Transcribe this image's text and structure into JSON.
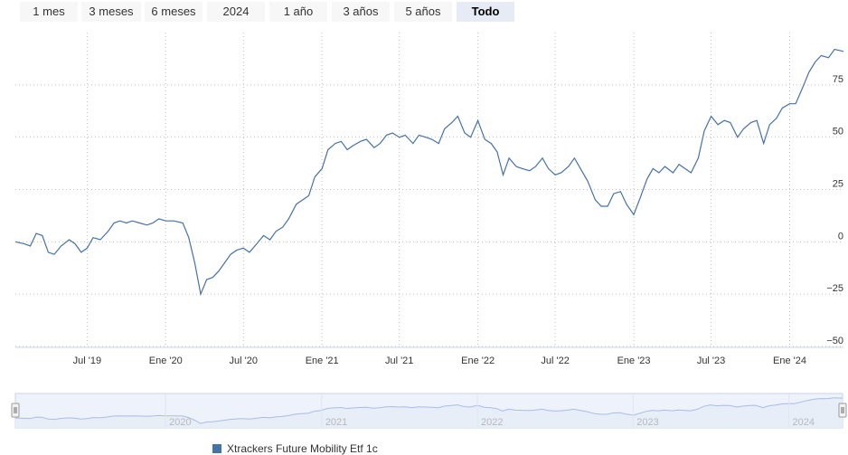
{
  "range_selector": {
    "buttons": [
      {
        "label": "1 mes",
        "active": false
      },
      {
        "label": "3 meses",
        "active": false
      },
      {
        "label": "6 meses",
        "active": false
      },
      {
        "label": "2024",
        "active": false
      },
      {
        "label": "1 año",
        "active": false
      },
      {
        "label": "3 años",
        "active": false
      },
      {
        "label": "5 años",
        "active": false
      },
      {
        "label": "Todo",
        "active": true
      }
    ]
  },
  "colors": {
    "line": "#4572a7",
    "grid": "#c0c0c0",
    "navigator_line": "#a8bee6",
    "navigator_fill": "#e8eef8"
  },
  "chart_data": {
    "type": "line",
    "x_start": "2019-01-14",
    "x_end": "2024-05-06",
    "ylim": [
      -50,
      100
    ],
    "y_ticks": [
      -50,
      -25,
      0,
      25,
      50,
      75
    ],
    "y_tick_labels": [
      "−50",
      "−25",
      "0",
      "25",
      "50",
      "75"
    ],
    "x_ticks": [
      {
        "date": "2019-07-01",
        "label": "Jul '19"
      },
      {
        "date": "2020-01-01",
        "label": "Ene '20"
      },
      {
        "date": "2020-07-01",
        "label": "Jul '20"
      },
      {
        "date": "2021-01-01",
        "label": "Ene '21"
      },
      {
        "date": "2021-07-01",
        "label": "Jul '21"
      },
      {
        "date": "2022-01-01",
        "label": "Ene '22"
      },
      {
        "date": "2022-07-01",
        "label": "Jul '22"
      },
      {
        "date": "2023-01-01",
        "label": "Ene '23"
      },
      {
        "date": "2023-07-01",
        "label": "Jul '23"
      },
      {
        "date": "2024-01-01",
        "label": "Ene '24"
      }
    ],
    "navigator_labels": [
      {
        "date": "2020-01-01",
        "label": "2020"
      },
      {
        "date": "2021-01-01",
        "label": "2021"
      },
      {
        "date": "2022-01-01",
        "label": "2022"
      },
      {
        "date": "2023-01-01",
        "label": "2023"
      },
      {
        "date": "2024-01-01",
        "label": "2024"
      }
    ],
    "series": [
      {
        "name": "Xtrackers Future Mobility Etf 1c",
        "points": [
          [
            "2019-01-14",
            0
          ],
          [
            "2019-02-04",
            -1
          ],
          [
            "2019-02-18",
            -2
          ],
          [
            "2019-03-04",
            4
          ],
          [
            "2019-03-18",
            3
          ],
          [
            "2019-04-01",
            -5
          ],
          [
            "2019-04-15",
            -6
          ],
          [
            "2019-05-01",
            -2
          ],
          [
            "2019-05-20",
            1
          ],
          [
            "2019-06-03",
            -1
          ],
          [
            "2019-06-17",
            -5
          ],
          [
            "2019-07-01",
            -3
          ],
          [
            "2019-07-15",
            2
          ],
          [
            "2019-08-01",
            1
          ],
          [
            "2019-08-19",
            5
          ],
          [
            "2019-09-02",
            9
          ],
          [
            "2019-09-16",
            10
          ],
          [
            "2019-10-01",
            9
          ],
          [
            "2019-10-15",
            10
          ],
          [
            "2019-11-01",
            9
          ],
          [
            "2019-11-18",
            8
          ],
          [
            "2019-12-02",
            9
          ],
          [
            "2019-12-16",
            11
          ],
          [
            "2020-01-01",
            10
          ],
          [
            "2020-01-20",
            10
          ],
          [
            "2020-02-10",
            9
          ],
          [
            "2020-02-24",
            2
          ],
          [
            "2020-03-09",
            -10
          ],
          [
            "2020-03-23",
            -25
          ],
          [
            "2020-04-06",
            -18
          ],
          [
            "2020-04-20",
            -17
          ],
          [
            "2020-05-04",
            -14
          ],
          [
            "2020-05-18",
            -10
          ],
          [
            "2020-06-01",
            -6
          ],
          [
            "2020-06-15",
            -4
          ],
          [
            "2020-07-01",
            -3
          ],
          [
            "2020-07-15",
            -5
          ],
          [
            "2020-08-01",
            -1
          ],
          [
            "2020-08-17",
            3
          ],
          [
            "2020-09-01",
            1
          ],
          [
            "2020-09-15",
            5
          ],
          [
            "2020-10-01",
            7
          ],
          [
            "2020-10-15",
            11
          ],
          [
            "2020-11-02",
            18
          ],
          [
            "2020-11-16",
            20
          ],
          [
            "2020-12-01",
            22
          ],
          [
            "2020-12-15",
            31
          ],
          [
            "2021-01-01",
            35
          ],
          [
            "2021-01-15",
            44
          ],
          [
            "2021-02-01",
            47
          ],
          [
            "2021-02-15",
            48
          ],
          [
            "2021-03-01",
            44
          ],
          [
            "2021-03-15",
            46
          ],
          [
            "2021-04-01",
            48
          ],
          [
            "2021-04-15",
            49
          ],
          [
            "2021-05-03",
            45
          ],
          [
            "2021-05-17",
            47
          ],
          [
            "2021-06-01",
            51
          ],
          [
            "2021-06-15",
            52
          ],
          [
            "2021-07-01",
            50
          ],
          [
            "2021-07-15",
            51
          ],
          [
            "2021-08-02",
            47
          ],
          [
            "2021-08-16",
            51
          ],
          [
            "2021-09-01",
            50
          ],
          [
            "2021-09-15",
            49
          ],
          [
            "2021-10-01",
            47
          ],
          [
            "2021-10-15",
            54
          ],
          [
            "2021-11-01",
            57
          ],
          [
            "2021-11-15",
            60
          ],
          [
            "2021-12-01",
            52
          ],
          [
            "2021-12-15",
            50
          ],
          [
            "2022-01-01",
            58
          ],
          [
            "2022-01-17",
            49
          ],
          [
            "2022-02-01",
            47
          ],
          [
            "2022-02-15",
            43
          ],
          [
            "2022-03-01",
            32
          ],
          [
            "2022-03-15",
            40
          ],
          [
            "2022-04-01",
            36
          ],
          [
            "2022-04-15",
            35
          ],
          [
            "2022-05-02",
            34
          ],
          [
            "2022-05-16",
            36
          ],
          [
            "2022-06-01",
            40
          ],
          [
            "2022-06-15",
            35
          ],
          [
            "2022-07-01",
            32
          ],
          [
            "2022-07-15",
            33
          ],
          [
            "2022-08-01",
            36
          ],
          [
            "2022-08-15",
            40
          ],
          [
            "2022-09-01",
            34
          ],
          [
            "2022-09-15",
            29
          ],
          [
            "2022-10-03",
            20
          ],
          [
            "2022-10-17",
            17
          ],
          [
            "2022-11-01",
            17
          ],
          [
            "2022-11-15",
            23
          ],
          [
            "2022-12-01",
            24
          ],
          [
            "2022-12-15",
            18
          ],
          [
            "2023-01-01",
            13
          ],
          [
            "2023-01-16",
            21
          ],
          [
            "2023-02-01",
            30
          ],
          [
            "2023-02-15",
            35
          ],
          [
            "2023-03-01",
            33
          ],
          [
            "2023-03-15",
            36
          ],
          [
            "2023-04-03",
            33
          ],
          [
            "2023-04-17",
            37
          ],
          [
            "2023-05-01",
            35
          ],
          [
            "2023-05-15",
            33
          ],
          [
            "2023-06-01",
            40
          ],
          [
            "2023-06-15",
            53
          ],
          [
            "2023-07-01",
            60
          ],
          [
            "2023-07-17",
            56
          ],
          [
            "2023-08-01",
            58
          ],
          [
            "2023-08-15",
            57
          ],
          [
            "2023-09-01",
            50
          ],
          [
            "2023-09-15",
            54
          ],
          [
            "2023-10-02",
            57
          ],
          [
            "2023-10-16",
            58
          ],
          [
            "2023-11-01",
            47
          ],
          [
            "2023-11-15",
            56
          ],
          [
            "2023-12-01",
            59
          ],
          [
            "2023-12-15",
            64
          ],
          [
            "2024-01-01",
            66
          ],
          [
            "2024-01-15",
            66
          ],
          [
            "2024-02-01",
            74
          ],
          [
            "2024-02-15",
            81
          ],
          [
            "2024-03-01",
            86
          ],
          [
            "2024-03-15",
            89
          ],
          [
            "2024-04-01",
            88
          ],
          [
            "2024-04-15",
            92
          ],
          [
            "2024-05-06",
            91
          ]
        ]
      }
    ],
    "legend": [
      "Xtrackers Future Mobility Etf 1c"
    ]
  }
}
